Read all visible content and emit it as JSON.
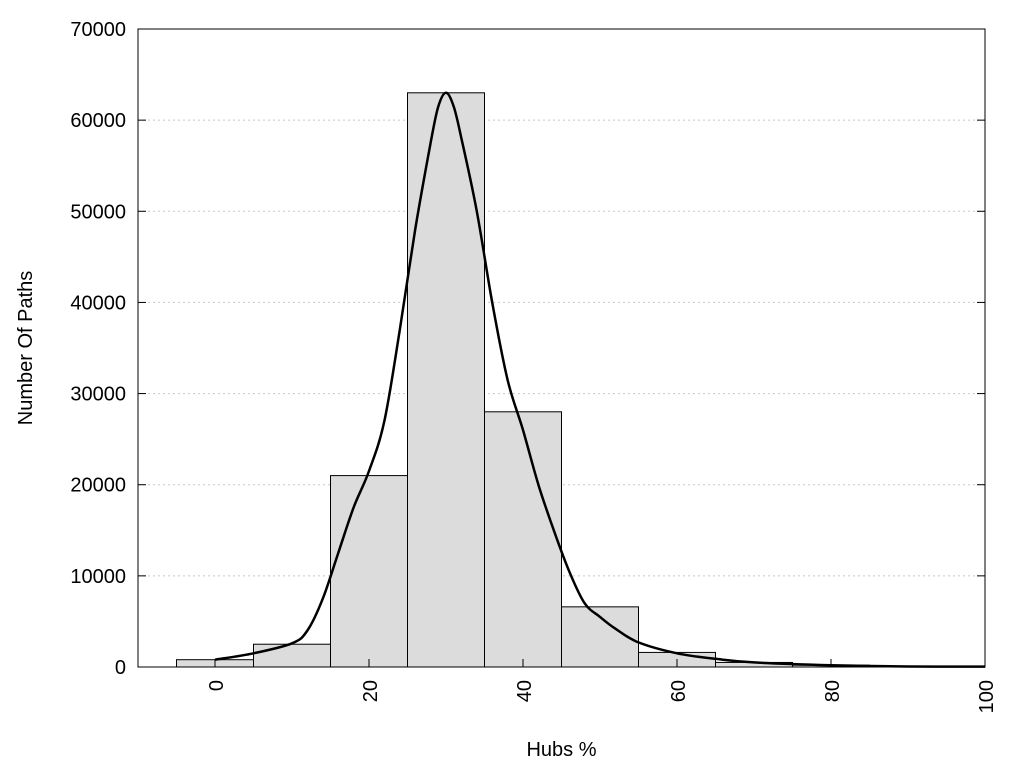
{
  "chart_data": {
    "type": "bar",
    "xlabel": "Hubs %",
    "ylabel": "Number Of Paths",
    "xlim": [
      -10,
      100
    ],
    "ylim": [
      0,
      70000
    ],
    "x_ticks": [
      0,
      20,
      40,
      60,
      80,
      100
    ],
    "y_ticks": [
      0,
      10000,
      20000,
      30000,
      40000,
      50000,
      60000,
      70000
    ],
    "grid": "horizontal-dotted",
    "bins": [
      {
        "x0": -5,
        "x1": 5,
        "value": 800
      },
      {
        "x0": 5,
        "x1": 15,
        "value": 2500
      },
      {
        "x0": 15,
        "x1": 25,
        "value": 21000
      },
      {
        "x0": 25,
        "x1": 35,
        "value": 63000
      },
      {
        "x0": 35,
        "x1": 45,
        "value": 28000
      },
      {
        "x0": 45,
        "x1": 55,
        "value": 6600
      },
      {
        "x0": 55,
        "x1": 65,
        "value": 1600
      },
      {
        "x0": 65,
        "x1": 75,
        "value": 500
      },
      {
        "x0": 75,
        "x1": 85,
        "value": 200
      },
      {
        "x0": 85,
        "x1": 95,
        "value": 80
      },
      {
        "x0": 95,
        "x1": 105,
        "value": 40
      }
    ],
    "curve": [
      {
        "x": 0,
        "y": 800
      },
      {
        "x": 5,
        "y": 1500
      },
      {
        "x": 10,
        "y": 2600
      },
      {
        "x": 12,
        "y": 4000
      },
      {
        "x": 14,
        "y": 7500
      },
      {
        "x": 16,
        "y": 12500
      },
      {
        "x": 18,
        "y": 17500
      },
      {
        "x": 20,
        "y": 21500
      },
      {
        "x": 22,
        "y": 27000
      },
      {
        "x": 24,
        "y": 37000
      },
      {
        "x": 26,
        "y": 48000
      },
      {
        "x": 28,
        "y": 57500
      },
      {
        "x": 29,
        "y": 61500
      },
      {
        "x": 30,
        "y": 63000
      },
      {
        "x": 31,
        "y": 61500
      },
      {
        "x": 32,
        "y": 58000
      },
      {
        "x": 34,
        "y": 50000
      },
      {
        "x": 36,
        "y": 40000
      },
      {
        "x": 38,
        "y": 31500
      },
      {
        "x": 40,
        "y": 26000
      },
      {
        "x": 42,
        "y": 20000
      },
      {
        "x": 44,
        "y": 15000
      },
      {
        "x": 46,
        "y": 10500
      },
      {
        "x": 48,
        "y": 7000
      },
      {
        "x": 50,
        "y": 5500
      },
      {
        "x": 52,
        "y": 4200
      },
      {
        "x": 55,
        "y": 2700
      },
      {
        "x": 60,
        "y": 1500
      },
      {
        "x": 65,
        "y": 900
      },
      {
        "x": 70,
        "y": 500
      },
      {
        "x": 80,
        "y": 200
      },
      {
        "x": 90,
        "y": 60
      },
      {
        "x": 100,
        "y": 40
      }
    ],
    "colors": {
      "bar_fill": "#dcdcdc",
      "bar_stroke": "#000000",
      "curve": "#000000",
      "grid": "#c8c8c8"
    }
  }
}
